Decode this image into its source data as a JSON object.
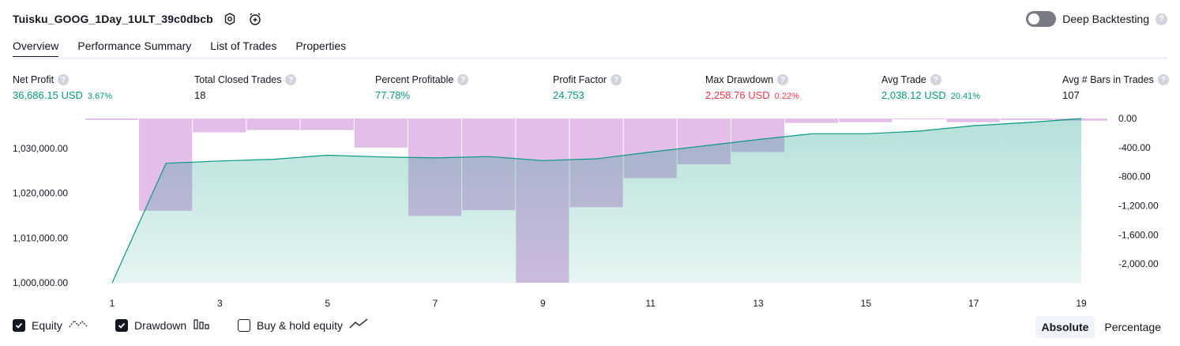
{
  "header": {
    "strategy_title": "Tuisku_GOOG_1Day_1ULT_39c0dbcb",
    "deep_backtesting_label": "Deep Backtesting",
    "deep_backtesting_enabled": false,
    "help_glyph": "?"
  },
  "tabs": [
    {
      "label": "Overview",
      "active": true
    },
    {
      "label": "Performance Summary",
      "active": false
    },
    {
      "label": "List of Trades",
      "active": false
    },
    {
      "label": "Properties",
      "active": false
    }
  ],
  "metrics": [
    {
      "label": "Net Profit",
      "value": "36,686.15 USD",
      "pct": "3.67%",
      "color": "#089981"
    },
    {
      "label": "Total Closed Trades",
      "value": "18",
      "pct": "",
      "color": "#131722"
    },
    {
      "label": "Percent Profitable",
      "value": "77.78%",
      "pct": "",
      "color": "#089981"
    },
    {
      "label": "Profit Factor",
      "value": "24.753",
      "pct": "",
      "color": "#089981"
    },
    {
      "label": "Max Drawdown",
      "value": "2,258.76 USD",
      "pct": "0.22%",
      "color": "#f23645"
    },
    {
      "label": "Avg Trade",
      "value": "2,038.12 USD",
      "pct": "20.41%",
      "color": "#089981"
    },
    {
      "label": "Avg # Bars in Trades",
      "value": "107",
      "pct": "",
      "color": "#131722"
    }
  ],
  "chart_data": {
    "type": "area",
    "x": [
      1,
      2,
      3,
      4,
      5,
      6,
      7,
      8,
      9,
      10,
      11,
      12,
      13,
      14,
      15,
      16,
      17,
      18,
      19
    ],
    "x_tick_labels": [
      "1",
      "3",
      "5",
      "7",
      "9",
      "11",
      "13",
      "15",
      "17",
      "19"
    ],
    "equity_axis": {
      "ticks": [
        "1,000,000.00",
        "1,010,000.00",
        "1,020,000.00",
        "1,030,000.00"
      ],
      "ylim": [
        1000000,
        1036700
      ]
    },
    "drawdown_axis": {
      "ticks": [
        "0.00",
        "-400.00",
        "-800.00",
        "-1,200.00",
        "-1,600.00",
        "-2,000.00"
      ],
      "ylim": [
        -2260,
        0
      ]
    },
    "series": [
      {
        "name": "Equity",
        "values": [
          1000000,
          1026700,
          1027200,
          1027600,
          1028500,
          1028100,
          1027900,
          1028200,
          1027300,
          1027700,
          1029200,
          1030600,
          1032000,
          1033300,
          1033300,
          1033900,
          1035100,
          1035800,
          1036686
        ],
        "color": "#089981"
      },
      {
        "name": "Drawdown",
        "values": [
          -20,
          -1270,
          -190,
          -160,
          -160,
          -400,
          -1340,
          -1260,
          -2259,
          -1220,
          -820,
          -630,
          -460,
          -60,
          -50,
          -10,
          -50,
          -20,
          -30
        ],
        "color": "#ce93d8"
      }
    ]
  },
  "legend": {
    "equity_label": "Equity",
    "drawdown_label": "Drawdown",
    "buyhold_label": "Buy & hold equity",
    "equity_checked": true,
    "drawdown_checked": true,
    "buyhold_checked": false
  },
  "view_toggle": {
    "absolute_label": "Absolute",
    "percentage_label": "Percentage",
    "selected": "Absolute"
  }
}
